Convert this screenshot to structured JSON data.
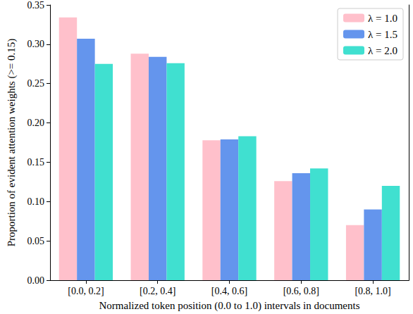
{
  "chart_data": {
    "type": "bar",
    "x_label": "Normalized token position (0.0 to 1.0) intervals in documents",
    "y_label": "Proportion of evident attention weights (>= 0.15)",
    "categories": [
      "[0.0, 0.2]",
      "[0.2, 0.4]",
      "[0.4, 0.6]",
      "[0.6, 0.8]",
      "[0.8, 1.0]"
    ],
    "series": [
      {
        "name": "λ = 1.0",
        "color": "#ffc0cb",
        "values": [
          0.334,
          0.288,
          0.178,
          0.126,
          0.07
        ]
      },
      {
        "name": "λ = 1.5",
        "color": "#6495ed",
        "values": [
          0.307,
          0.284,
          0.179,
          0.136,
          0.09
        ]
      },
      {
        "name": "λ = 2.0",
        "color": "#40e0d0",
        "values": [
          0.275,
          0.276,
          0.183,
          0.142,
          0.12
        ]
      }
    ],
    "ylim": [
      0,
      0.35
    ],
    "yticks": [
      {
        "value": 0,
        "label": "0.00"
      },
      {
        "value": 0.05,
        "label": "0.05"
      },
      {
        "value": 0.1,
        "label": "0.10"
      },
      {
        "value": 0.15,
        "label": "0.15"
      },
      {
        "value": 0.2,
        "label": "0.20"
      },
      {
        "value": 0.25,
        "label": "0.25"
      },
      {
        "value": 0.3,
        "label": "0.30"
      },
      {
        "value": 0.35,
        "label": "0.35"
      }
    ],
    "grid": false,
    "legend": "upper right"
  }
}
